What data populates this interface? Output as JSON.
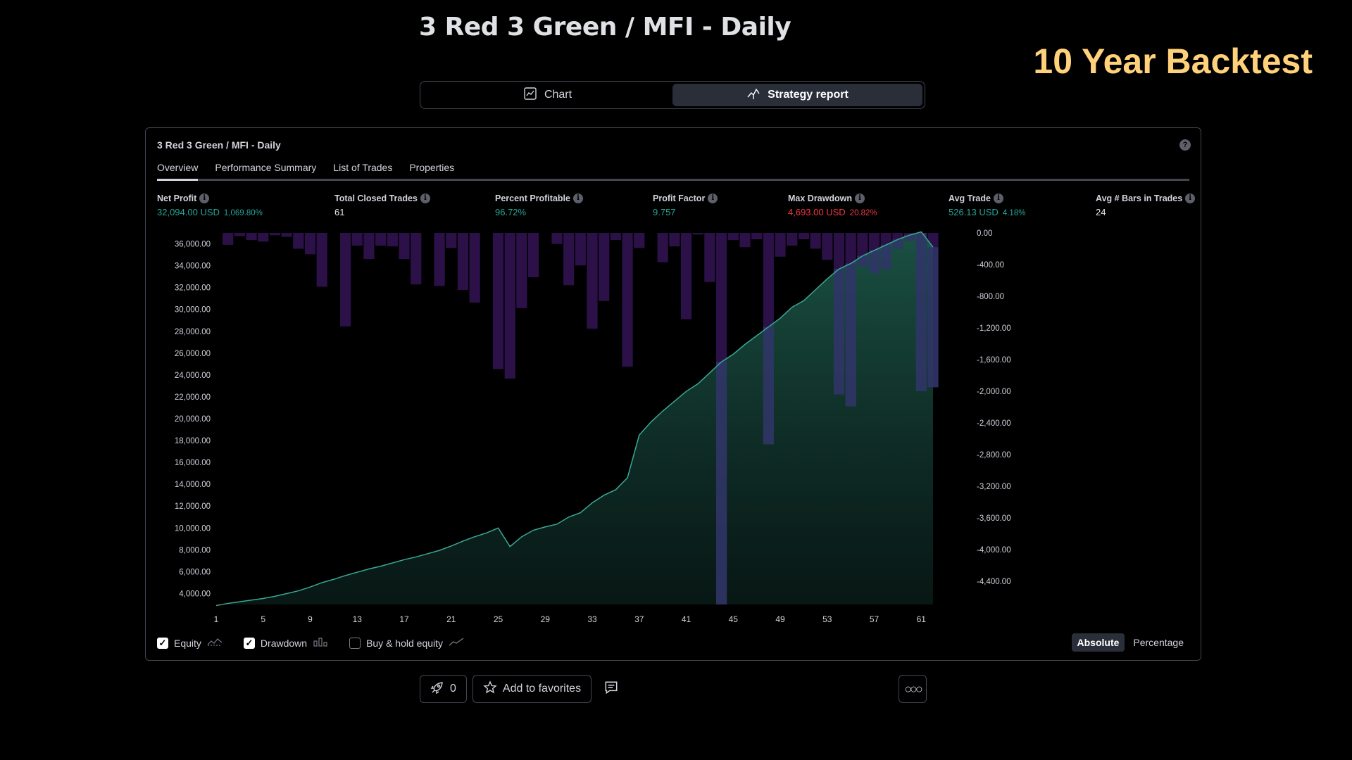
{
  "page_title": "3 Red 3 Green / MFI - Daily",
  "banner": "10 Year Backtest",
  "view_toggle": {
    "chart_label": "Chart",
    "report_label": "Strategy report",
    "active": "report"
  },
  "panel": {
    "title": "3 Red 3 Green / MFI - Daily",
    "tabs": [
      "Overview",
      "Performance Summary",
      "List of Trades",
      "Properties"
    ],
    "active_tab": "Overview"
  },
  "metrics": [
    {
      "label": "Net Profit",
      "value": "32,094.00 USD",
      "sub": "1,069.80%",
      "color": "#26a69a"
    },
    {
      "label": "Total Closed Trades",
      "value": "61",
      "sub": "",
      "color": "#e8e8e8"
    },
    {
      "label": "Percent Profitable",
      "value": "96.72%",
      "sub": "",
      "color": "#26a69a"
    },
    {
      "label": "Profit Factor",
      "value": "9.757",
      "sub": "",
      "color": "#26a69a"
    },
    {
      "label": "Max Drawdown",
      "value": "4,693.00 USD",
      "sub": "20.82%",
      "color": "#f23645"
    },
    {
      "label": "Avg Trade",
      "value": "526.13 USD",
      "sub": "4.18%",
      "color": "#26a69a"
    },
    {
      "label": "Avg # Bars in Trades",
      "value": "24",
      "sub": "",
      "color": "#e8e8e8"
    }
  ],
  "legend": {
    "equity": "Equity",
    "drawdown": "Drawdown",
    "buyhold": "Buy & hold equity",
    "equity_checked": true,
    "drawdown_checked": true,
    "buyhold_checked": false
  },
  "mode": {
    "absolute": "Absolute",
    "percentage": "Percentage",
    "active": "absolute"
  },
  "bottom": {
    "boost_count": "0",
    "favorites": "Add to favorites"
  },
  "colors": {
    "equity_line": "#3aa897",
    "drawdown_bar": "#2b1148",
    "drawdown_overlap": "#2f3566",
    "accent_banner": "#ffd17a"
  },
  "chart_data": {
    "type": "area",
    "x_ticks": [
      1,
      5,
      9,
      13,
      17,
      21,
      25,
      29,
      33,
      37,
      41,
      45,
      49,
      53,
      57,
      61
    ],
    "y_left": {
      "ticks": [
        "36,000.00",
        "34,000.00",
        "32,000.00",
        "30,000.00",
        "28,000.00",
        "26,000.00",
        "24,000.00",
        "22,000.00",
        "20,000.00",
        "18,000.00",
        "16,000.00",
        "14,000.00",
        "12,000.00",
        "10,000.00",
        "8,000.00",
        "6,000.00",
        "4,000.00"
      ],
      "range": [
        3000,
        37000
      ]
    },
    "y_right": {
      "ticks": [
        "0.00",
        "-400.00",
        "-800.00",
        "-1,200.00",
        "-1,600.00",
        "-2,000.00",
        "-2,400.00",
        "-2,800.00",
        "-3,200.00",
        "-3,600.00",
        "-4,000.00",
        "-4,400.00"
      ],
      "range": [
        -4693,
        0
      ]
    },
    "series": [
      {
        "name": "Equity",
        "x": [
          1,
          2,
          3,
          4,
          5,
          6,
          7,
          8,
          9,
          10,
          11,
          12,
          13,
          14,
          15,
          16,
          17,
          18,
          19,
          20,
          21,
          22,
          23,
          24,
          25,
          26,
          27,
          28,
          29,
          30,
          31,
          32,
          33,
          34,
          35,
          36,
          37,
          38,
          39,
          40,
          41,
          42,
          43,
          44,
          45,
          46,
          47,
          48,
          49,
          50,
          51,
          52,
          53,
          54,
          55,
          56,
          57,
          58,
          59,
          60,
          61,
          62
        ],
        "values": [
          2900,
          3100,
          3250,
          3400,
          3550,
          3750,
          4000,
          4250,
          4600,
          5000,
          5300,
          5650,
          5950,
          6250,
          6500,
          6800,
          7100,
          7350,
          7650,
          7950,
          8350,
          8800,
          9200,
          9550,
          10000,
          8300,
          9200,
          9800,
          10100,
          10350,
          11000,
          11400,
          12300,
          13000,
          13500,
          14600,
          18500,
          19700,
          20700,
          21600,
          22500,
          23200,
          24200,
          25200,
          25900,
          26800,
          27600,
          28400,
          29200,
          30200,
          30800,
          31800,
          32800,
          33700,
          34200,
          34900,
          35400,
          35900,
          36400,
          36800,
          37100,
          35700
        ]
      },
      {
        "name": "Drawdown",
        "x": [
          1,
          2,
          3,
          4,
          5,
          6,
          7,
          8,
          9,
          10,
          11,
          12,
          13,
          14,
          15,
          16,
          17,
          18,
          19,
          20,
          21,
          22,
          23,
          24,
          25,
          26,
          27,
          28,
          29,
          30,
          31,
          32,
          33,
          34,
          35,
          36,
          37,
          38,
          39,
          40,
          41,
          42,
          43,
          44,
          45,
          46,
          47,
          48,
          49,
          50,
          51,
          52,
          53,
          54,
          55,
          56,
          57,
          58,
          59,
          60,
          61,
          62
        ],
        "values": [
          0,
          -150,
          -40,
          -90,
          -110,
          -30,
          -50,
          -200,
          -270,
          -680,
          0,
          -1180,
          -160,
          -330,
          -160,
          -170,
          -330,
          -650,
          0,
          -670,
          -190,
          -720,
          -880,
          0,
          -1720,
          -1840,
          -950,
          -560,
          0,
          -140,
          -660,
          -410,
          -1210,
          -860,
          -90,
          -1690,
          -190,
          0,
          -370,
          -170,
          -1090,
          -20,
          -620,
          -4693,
          -90,
          -180,
          -80,
          -2670,
          -300,
          -160,
          -80,
          -200,
          -340,
          -2040,
          -2190,
          -430,
          -510,
          -460,
          -200,
          -100,
          -2000,
          -1950
        ]
      }
    ]
  }
}
